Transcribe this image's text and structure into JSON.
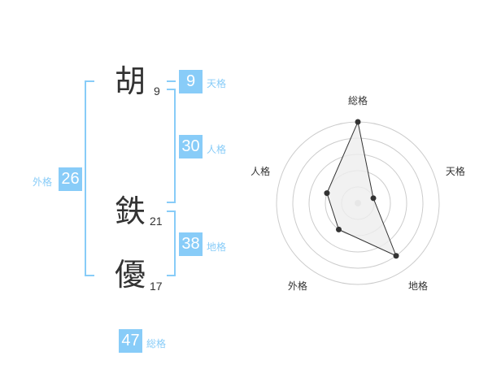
{
  "name": {
    "chars": [
      {
        "char": "胡",
        "strokes": "9"
      },
      {
        "char": "鉄",
        "strokes": "21"
      },
      {
        "char": "優",
        "strokes": "17"
      }
    ]
  },
  "fortunes": {
    "tenkaku": {
      "value": "9",
      "label": "天格"
    },
    "jinkaku": {
      "value": "30",
      "label": "人格"
    },
    "chikaku": {
      "value": "38",
      "label": "地格"
    },
    "gaikaku": {
      "value": "26",
      "label": "外格"
    },
    "soukaku": {
      "value": "47",
      "label": "総格"
    }
  },
  "colors": {
    "accent": "#88ccf8",
    "radar_fill": "#eeeeee",
    "radar_line": "#333333",
    "grid": "#cccccc"
  },
  "chart_data": {
    "type": "radar",
    "axes": [
      "総格",
      "天格",
      "地格",
      "外格",
      "人格"
    ],
    "values": [
      5,
      1,
      4,
      2,
      2
    ],
    "range": [
      0,
      5
    ],
    "rings": 5
  }
}
